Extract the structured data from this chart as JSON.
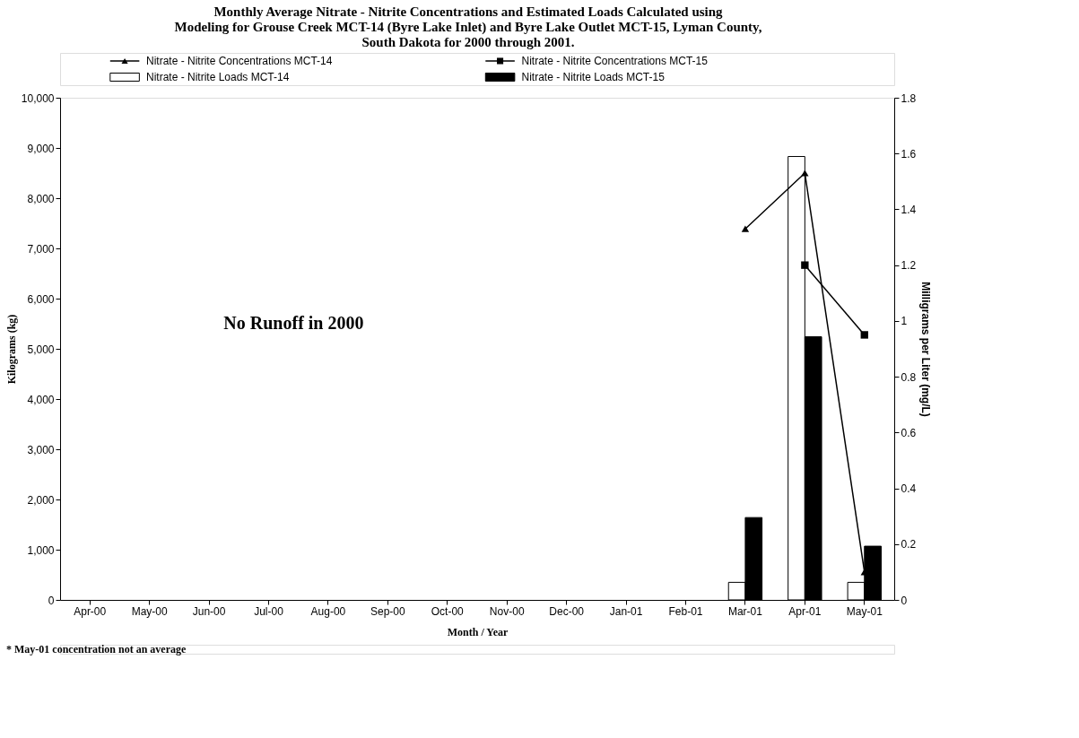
{
  "chart_data": {
    "type": "bar",
    "title": [
      "Monthly Average Nitrate - Nitrite Concentrations and Estimated Loads Calculated using",
      "Modeling for Grouse Creek MCT-14 (Byre Lake Inlet) and Byre Lake Outlet MCT-15, Lyman County,",
      "South Dakota for 2000 through 2001."
    ],
    "xlabel": "Month / Year",
    "ylabel": "Kilograms (kg)",
    "y2label": "Milligrams per Liter (mg/L)",
    "categories": [
      "Apr-00",
      "May-00",
      "Jun-00",
      "Jul-00",
      "Aug-00",
      "Sep-00",
      "Oct-00",
      "Nov-00",
      "Dec-00",
      "Jan-01",
      "Feb-01",
      "Mar-01",
      "Apr-01",
      "May-01"
    ],
    "series": [
      {
        "name": "Nitrate - Nitrite Loads MCT-14",
        "color": "#ffffff",
        "values": [
          null,
          null,
          null,
          null,
          null,
          null,
          null,
          null,
          null,
          null,
          null,
          350,
          8830,
          350
        ]
      },
      {
        "name": "Nitrate - Nitrite Loads MCT-15",
        "color": "#000000",
        "values": [
          null,
          null,
          null,
          null,
          null,
          null,
          null,
          null,
          null,
          null,
          null,
          1640,
          5240,
          1070
        ]
      },
      {
        "name": "Nitrate - Nitrite Concentrations MCT-14",
        "type": "line",
        "axis": "y2",
        "marker": "triangle",
        "color": "#000000",
        "values": [
          null,
          null,
          null,
          null,
          null,
          null,
          null,
          null,
          null,
          null,
          null,
          1.33,
          1.53,
          0.1
        ]
      },
      {
        "name": "Nitrate - Nitrite Concentrations MCT-15",
        "type": "line",
        "axis": "y2",
        "marker": "square",
        "color": "#000000",
        "values": [
          null,
          null,
          null,
          null,
          null,
          null,
          null,
          null,
          null,
          null,
          null,
          null,
          1.2,
          0.95
        ]
      }
    ],
    "ylim": [
      0,
      10000
    ],
    "yticks": [
      0,
      {
        "value": 1000,
        "label": "1,000"
      },
      {
        "value": 2000,
        "label": "2,000"
      },
      {
        "value": 3000,
        "label": "3,000"
      },
      {
        "value": 4000,
        "label": "4,000"
      },
      {
        "value": 5000,
        "label": "5,000"
      },
      {
        "value": 6000,
        "label": "6,000"
      },
      {
        "value": 7000,
        "label": "7,000"
      },
      {
        "value": 8000,
        "label": "8,000"
      },
      {
        "value": 9000,
        "label": "9,000"
      },
      {
        "value": 10000,
        "label": "10,000"
      }
    ],
    "y2lim": [
      0,
      1.8
    ],
    "y2ticks": [
      0,
      0.2,
      0.4,
      0.6,
      0.8,
      1,
      1.2,
      1.4,
      1.6,
      1.8
    ],
    "grid": false,
    "legend": "top",
    "annotations": [
      "No Runoff in 2000",
      "* May-01 concentration not an average"
    ]
  }
}
